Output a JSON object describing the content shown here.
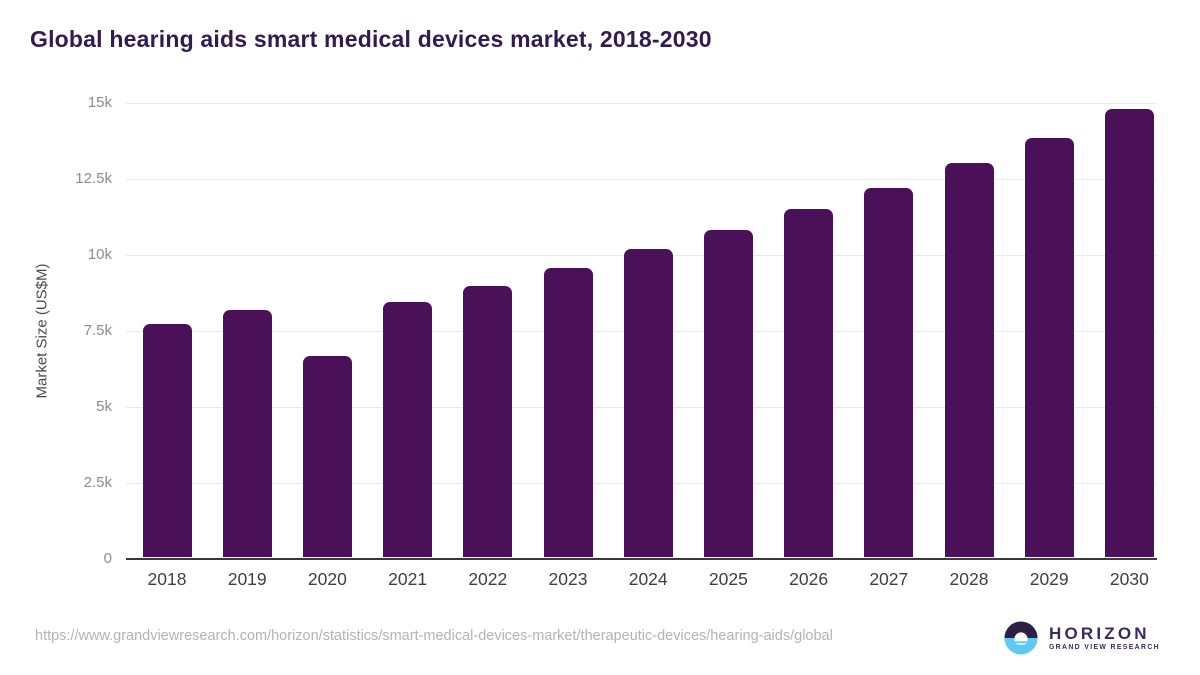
{
  "title": "Global hearing aids smart medical devices market, 2018-2030",
  "y_axis_title": "Market Size (US$M)",
  "footer": {
    "source_url": "https://www.grandviewresearch.com/horizon/statistics/smart-medical-devices-market/therapeutic-devices/hearing-aids/global",
    "logo": {
      "brand": "HORIZON",
      "subbrand": "GRAND VIEW RESEARCH"
    }
  },
  "colors": {
    "bar": "#4a1159",
    "title": "#321b52",
    "gridline": "#e9e9e9",
    "axis_line": "#3a3a3a",
    "y_tick": "#8c8c8c",
    "x_tick": "#3f3f3f",
    "axis_title": "#4a4a4a",
    "url_text": "#b3b3b3",
    "logo_dark": "#2e2045",
    "logo_blue": "#5ec9f2",
    "logo_text": "#3b2a5e"
  },
  "chart_data": {
    "type": "bar",
    "title": "Global hearing aids smart medical devices market, 2018-2030",
    "xlabel": "",
    "ylabel": "Market Size (US$M)",
    "ylim": [
      0,
      15000
    ],
    "grid": true,
    "legend": "none",
    "categories": [
      "2018",
      "2019",
      "2020",
      "2021",
      "2022",
      "2023",
      "2024",
      "2025",
      "2026",
      "2027",
      "2028",
      "2029",
      "2030"
    ],
    "values": [
      7650,
      8110,
      6600,
      8390,
      8930,
      9520,
      10140,
      10770,
      11450,
      12150,
      12950,
      13790,
      14730
    ],
    "yticks": [
      {
        "value": 0,
        "label": "0"
      },
      {
        "value": 2500,
        "label": "2.5k"
      },
      {
        "value": 5000,
        "label": "5k"
      },
      {
        "value": 7500,
        "label": "7.5k"
      },
      {
        "value": 10000,
        "label": "10k"
      },
      {
        "value": 12500,
        "label": "12.5k"
      },
      {
        "value": 15000,
        "label": "15k"
      }
    ]
  }
}
